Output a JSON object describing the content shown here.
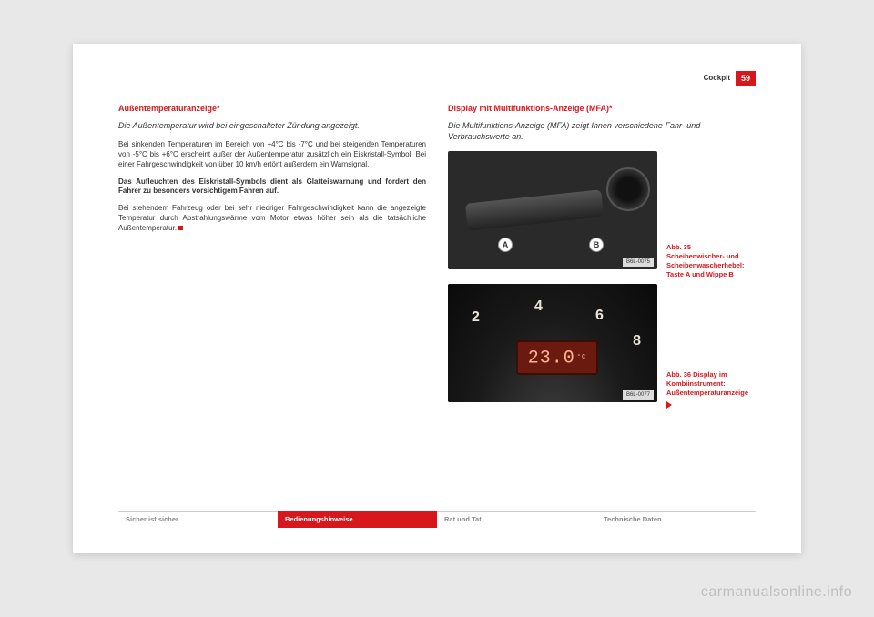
{
  "header": {
    "section": "Cockpit",
    "page_number": "59"
  },
  "left": {
    "title": "Außentemperaturanzeige*",
    "summary": "Die Außentemperatur wird bei eingeschalteter Zündung angezeigt.",
    "p1": "Bei sinkenden Temperaturen im Bereich von +4°C bis -7°C und bei steigenden Temperaturen von -5°C bis +6°C erscheint außer der Außentemperatur zusätzlich ein Eiskristall-Symbol. Bei einer Fahrgeschwindigkeit von über 10 km/h ertönt außerdem ein Warnsignal.",
    "p2": "Das Aufleuchten des Eiskristall-Symbols dient als Glatteiswarnung und fordert den Fahrer zu besonders vorsichtigem Fahren auf.",
    "p3": "Bei stehendem Fahrzeug oder bei sehr niedriger Fahrgeschwindigkeit kann die angezeigte Temperatur durch Abstrahlungswärme vom Motor etwas höher sein als die tatsächliche Außentemperatur."
  },
  "right": {
    "title": "Display mit Multifunktions-Anzeige (MFA)*",
    "summary": "Die Multifunktions-Anzeige (MFA) zeigt Ihnen verschiedene Fahr- und Verbrauchswerte an.",
    "fig1": {
      "marker_a": "A",
      "marker_b": "B",
      "code": "B6L-0075",
      "caption": "Abb. 35   Scheibenwischer- und Scheibenwascherhebel: Taste A und Wippe B"
    },
    "fig2": {
      "g2": "2",
      "g4": "4",
      "g6": "6",
      "g8": "8",
      "lcd_value": "23.0",
      "lcd_unit": "°C",
      "code": "B6L-0077",
      "caption": "Abb. 36   Display im Kombiinstrument: Außentemperaturanzeige"
    }
  },
  "footer": {
    "t1": "Sicher ist sicher",
    "t2": "Bedienungshinweise",
    "t3": "Rat und Tat",
    "t4": "Technische Daten"
  },
  "watermark": "carmanualsonline.info"
}
